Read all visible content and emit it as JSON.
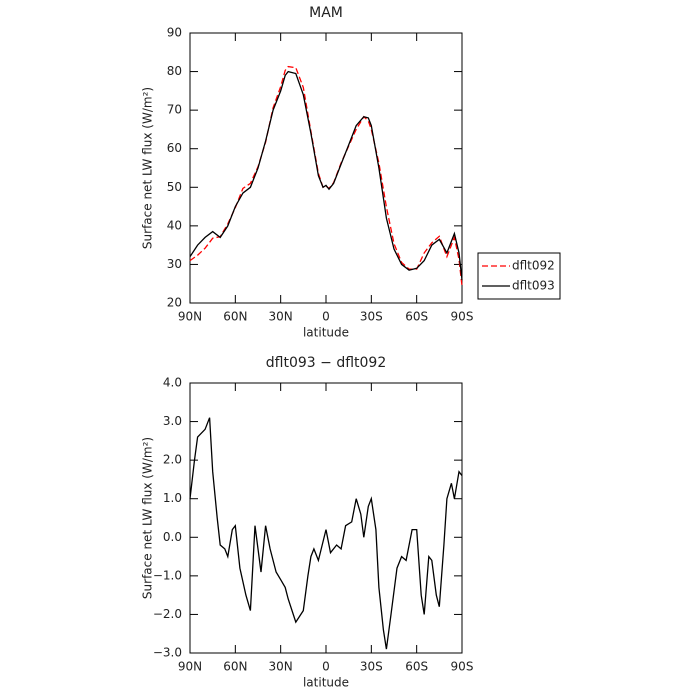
{
  "chart_data": [
    {
      "type": "line",
      "title": "MAM",
      "xlabel": "latitude",
      "ylabel": "Surface net LW flux (W/m²)",
      "x": [
        90,
        85,
        80,
        75,
        70,
        65,
        60,
        55,
        50,
        45,
        40,
        35,
        30,
        27,
        25,
        20,
        15,
        10,
        5,
        2,
        0,
        -2,
        -5,
        -10,
        -15,
        -20,
        -25,
        -28,
        -30,
        -35,
        -40,
        -45,
        -50,
        -55,
        -60,
        -65,
        -70,
        -75,
        -80,
        -85,
        -88,
        -90
      ],
      "series": [
        {
          "name": "dflt092",
          "color": "#ff0000",
          "dash": "dashed",
          "values": [
            31,
            32.4,
            34.2,
            36.8,
            37.2,
            40.5,
            44.7,
            49.7,
            51,
            55.3,
            61.7,
            70.6,
            76.1,
            80.3,
            81.3,
            81,
            75.9,
            64.5,
            53.6,
            50,
            50.3,
            49.7,
            51.2,
            56.3,
            60.7,
            65,
            68.3,
            67.2,
            65,
            56.3,
            44.9,
            35.4,
            30.5,
            28.8,
            28.8,
            33,
            35.6,
            37.3,
            32,
            37,
            31.3,
            24.4
          ]
        },
        {
          "name": "dflt093",
          "color": "#000000",
          "dash": "solid",
          "values": [
            32,
            35,
            37,
            38.5,
            37,
            40,
            45,
            48.5,
            50,
            55,
            62,
            70,
            75,
            79,
            80,
            79.5,
            74,
            64,
            53,
            50,
            50.5,
            49.5,
            51,
            56,
            61,
            66,
            68.3,
            68,
            66,
            55,
            42,
            34,
            30,
            28.5,
            29,
            31,
            35,
            36.5,
            33,
            38,
            33,
            26
          ]
        }
      ],
      "xlim": [
        90,
        -90
      ],
      "xticks": [
        {
          "value": 90,
          "label": "90N"
        },
        {
          "value": 60,
          "label": "60N"
        },
        {
          "value": 30,
          "label": "30N"
        },
        0,
        {
          "value": -30,
          "label": "30S"
        },
        {
          "value": -60,
          "label": "60S"
        },
        {
          "value": -90,
          "label": "90S"
        }
      ],
      "ylim": [
        20,
        90
      ],
      "yticks": [
        20,
        30,
        40,
        50,
        60,
        70,
        80,
        90
      ],
      "legend": "right"
    },
    {
      "type": "line",
      "title": "dflt093 − dflt092",
      "xlabel": "latitude",
      "ylabel": "Surface net LW flux (W/m²)",
      "x": [
        90,
        87,
        85,
        80,
        77,
        75,
        72,
        70,
        67,
        65,
        62,
        60,
        57,
        53,
        50,
        47,
        45,
        43,
        40,
        37,
        33,
        30,
        27,
        25,
        20,
        15,
        12,
        10,
        8,
        5,
        0,
        -3,
        -7,
        -10,
        -13,
        -17,
        -20,
        -23,
        -25,
        -28,
        -30,
        -33,
        -35,
        -38,
        -40,
        -43,
        -47,
        -50,
        -53,
        -57,
        -60,
        -63,
        -65,
        -68,
        -70,
        -73,
        -75,
        -78,
        -80,
        -83,
        -85,
        -88,
        -90
      ],
      "values": [
        1.0,
        2.0,
        2.6,
        2.8,
        3.1,
        1.7,
        0.5,
        -0.2,
        -0.3,
        -0.5,
        0.2,
        0.3,
        -0.8,
        -1.5,
        -1.9,
        0.3,
        -0.3,
        -0.9,
        0.3,
        -0.3,
        -0.9,
        -1.1,
        -1.3,
        -1.6,
        -2.2,
        -1.9,
        -1.0,
        -0.5,
        -0.3,
        -0.6,
        0.2,
        -0.4,
        -0.2,
        -0.3,
        0.3,
        0.4,
        1.0,
        0.6,
        0.0,
        0.8,
        1.0,
        0.2,
        -1.3,
        -2.4,
        -2.9,
        -2.0,
        -0.8,
        -0.5,
        -0.6,
        0.2,
        0.2,
        -1.5,
        -2.0,
        -0.5,
        -0.6,
        -1.5,
        -1.8,
        -0.2,
        1.0,
        1.4,
        1.0,
        1.7,
        1.6
      ],
      "color": "#000000",
      "xlim": [
        90,
        -90
      ],
      "xticks": [
        {
          "value": 90,
          "label": "90N"
        },
        {
          "value": 60,
          "label": "60N"
        },
        {
          "value": 30,
          "label": "30N"
        },
        0,
        {
          "value": -30,
          "label": "30S"
        },
        {
          "value": -60,
          "label": "60S"
        },
        {
          "value": -90,
          "label": "90S"
        }
      ],
      "ylim": [
        -3,
        4
      ],
      "yticks": [
        {
          "value": -3,
          "label": "−3.0"
        },
        {
          "value": -2,
          "label": "−2.0"
        },
        {
          "value": -1,
          "label": "−1.0"
        },
        {
          "value": 0,
          "label": "0.0"
        },
        {
          "value": 1,
          "label": "1.0"
        },
        {
          "value": 2,
          "label": "2.0"
        },
        {
          "value": 3,
          "label": "3.0"
        },
        {
          "value": 4,
          "label": "4.0"
        }
      ]
    }
  ]
}
